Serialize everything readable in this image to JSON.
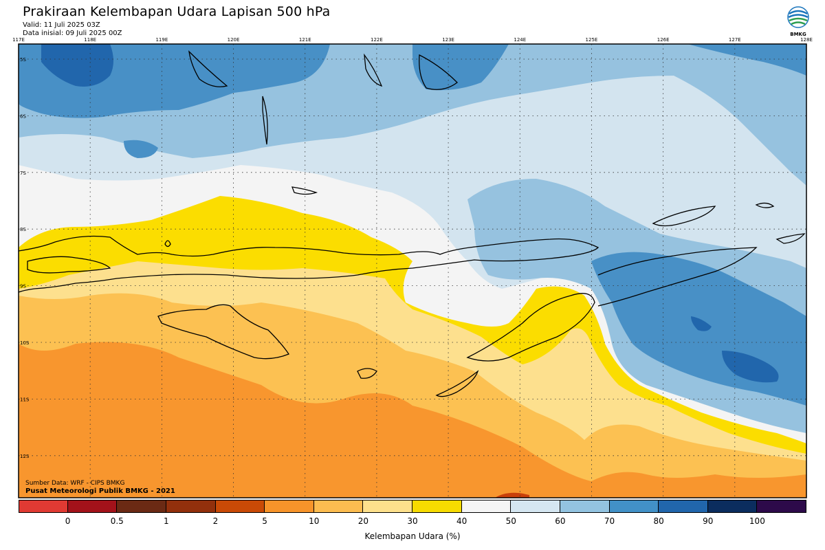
{
  "header": {
    "title": "Prakiraan Kelembapan Udara Lapisan 500 hPa",
    "valid": "Valid: 11 Juli 2025 03Z",
    "initial": "Data inisial: 09 Juli 2025 00Z",
    "logo_text": "BMKG"
  },
  "map": {
    "lon_labels": [
      "117E",
      "118E",
      "119E",
      "120E",
      "121E",
      "122E",
      "123E",
      "124E",
      "125E",
      "126E",
      "127E",
      "128E"
    ],
    "lat_labels": [
      "5S",
      "6S",
      "7S",
      "8S",
      "9S",
      "10S",
      "11S",
      "12S"
    ],
    "grid": true
  },
  "credits": {
    "source": "Sumber Data: WRF - CIPS BMKG",
    "org": "Pusat Meteorologi Publik BMKG - 2021"
  },
  "colorbar": {
    "label": "Kelembapan Udara (%)",
    "ticks": [
      "0",
      "0.5",
      "1",
      "2",
      "5",
      "10",
      "20",
      "30",
      "40",
      "50",
      "60",
      "70",
      "80",
      "90",
      "100"
    ],
    "colors": [
      "#e03a33",
      "#a3121a",
      "#6b2a14",
      "#92300c",
      "#c94a06",
      "#f7942a",
      "#fcbc50",
      "#fde08c",
      "#f7db00",
      "#f5f5f5",
      "#d5e6f1",
      "#93c3e0",
      "#4291c7",
      "#2166ac",
      "#0b2d5e",
      "#2d0a4a"
    ]
  },
  "field_colors": {
    "orange": "#f8962e",
    "light_orange": "#fcc152",
    "pale_orange": "#fde08e",
    "yellow": "#fbdd00",
    "white": "#f4f4f4",
    "pale_blue": "#d3e4ef",
    "light_blue": "#96c2df",
    "blue": "#4890c6",
    "dark_blue": "#2166ac",
    "deep_orange": "#c9400a"
  }
}
